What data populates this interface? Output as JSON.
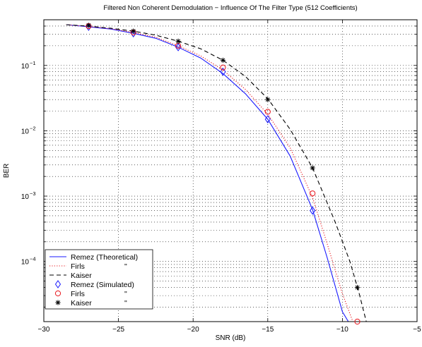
{
  "chart_data": {
    "type": "line",
    "title": "Filtered Non Coherent Demodulation − Influence Of The Filter Type (512 Coefficients)",
    "xlabel": "SNR (dB)",
    "ylabel": "BER",
    "xlim": [
      -30,
      -5
    ],
    "ylim": [
      1.2e-05,
      0.5
    ],
    "yscale": "log",
    "grid": true,
    "legend_position": "bottom-left",
    "x_ticks": [
      -30,
      -25,
      -20,
      -15,
      -10,
      -5
    ],
    "x_tick_labels": [
      "−30",
      "−25",
      "−20",
      "−15",
      "−10",
      "−5"
    ],
    "y_ticks": [
      0.1,
      0.01,
      0.001,
      0.0001
    ],
    "y_tick_mantissa": "10",
    "y_tick_exponents": [
      "−1",
      "−2",
      "−3",
      "−4"
    ],
    "colors": {
      "remez": "#1a1aff",
      "firls": "#e8161d",
      "kaiser": "#000000",
      "grid": "#000000"
    },
    "series": [
      {
        "name": "Remez (Theoretical)",
        "kind": "line",
        "style": "solid",
        "color_key": "remez",
        "x": [
          -28.5,
          -27,
          -25.5,
          -24,
          -22.5,
          -21,
          -19.5,
          -18,
          -16.5,
          -15,
          -13.5,
          -12,
          -11,
          -10,
          -9.6
        ],
        "y": [
          0.42,
          0.39,
          0.36,
          0.31,
          0.26,
          0.19,
          0.13,
          0.075,
          0.037,
          0.015,
          0.0041,
          0.00062,
          0.00011,
          1.7e-05,
          1.2e-05
        ]
      },
      {
        "name": "Firls",
        "kind": "line",
        "style": "dotted",
        "color_key": "firls",
        "legend_ditto": "\"",
        "x": [
          -28.5,
          -27,
          -25.5,
          -24,
          -22.5,
          -21,
          -19.5,
          -18,
          -16.5,
          -15,
          -13.5,
          -12,
          -11,
          -10,
          -9.3
        ],
        "y": [
          0.42,
          0.395,
          0.365,
          0.32,
          0.27,
          0.2,
          0.14,
          0.085,
          0.043,
          0.018,
          0.0055,
          0.00095,
          0.00018,
          3.2e-05,
          1.2e-05
        ]
      },
      {
        "name": "Kaiser",
        "kind": "line",
        "style": "dashed",
        "color_key": "kaiser",
        "x": [
          -28.5,
          -27,
          -25.5,
          -24,
          -22.5,
          -21,
          -19.5,
          -18,
          -16.5,
          -15,
          -13.5,
          -12,
          -10.5,
          -9.5,
          -8.9,
          -8.4
        ],
        "y": [
          0.42,
          0.4,
          0.37,
          0.335,
          0.29,
          0.235,
          0.18,
          0.12,
          0.068,
          0.031,
          0.0105,
          0.0027,
          0.00041,
          0.0001,
          3.4e-05,
          1.2e-05
        ]
      },
      {
        "name": "Remez (Simulated)",
        "kind": "markers",
        "marker": "diamond",
        "color_key": "remez",
        "x": [
          -27,
          -24,
          -21,
          -18,
          -15,
          -12
        ],
        "y": [
          0.39,
          0.31,
          0.19,
          0.08,
          0.015,
          0.0006
        ]
      },
      {
        "name": "Firls",
        "kind": "markers",
        "marker": "circle",
        "color_key": "firls",
        "legend_ditto": "\"",
        "x": [
          -27,
          -24,
          -21,
          -18,
          -15,
          -12,
          -9
        ],
        "y": [
          0.4,
          0.32,
          0.2,
          0.093,
          0.0195,
          0.0011,
          1.2e-05
        ]
      },
      {
        "name": "Kaiser",
        "kind": "markers",
        "marker": "star",
        "color_key": "kaiser",
        "legend_ditto": "\"",
        "x": [
          -27,
          -24,
          -21,
          -18,
          -15,
          -12,
          -9
        ],
        "y": [
          0.41,
          0.335,
          0.235,
          0.12,
          0.03,
          0.0027,
          4e-05
        ]
      }
    ]
  }
}
